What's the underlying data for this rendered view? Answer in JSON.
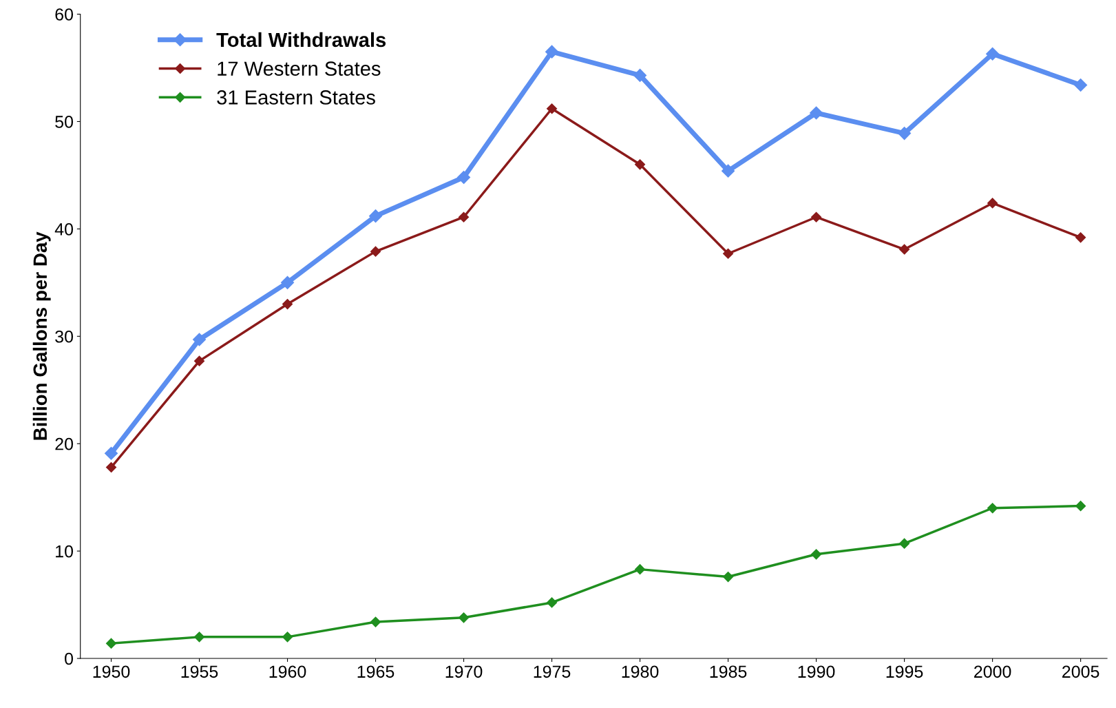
{
  "chart_data": {
    "type": "line",
    "ylabel": "Billion Gallons per Day",
    "categories": [
      "1950",
      "1955",
      "1960",
      "1965",
      "1970",
      "1975",
      "1980",
      "1985",
      "1990",
      "1995",
      "2000",
      "2005"
    ],
    "series": [
      {
        "name": "Total Withdrawals",
        "color": "#5b8ef0",
        "values": [
          19.1,
          29.7,
          35.0,
          41.2,
          44.8,
          56.5,
          54.3,
          45.4,
          50.8,
          48.9,
          56.3,
          53.4
        ]
      },
      {
        "name": "17 Western States",
        "color": "#8b1a1a",
        "values": [
          17.8,
          27.7,
          33.0,
          37.9,
          41.1,
          51.2,
          46.0,
          37.7,
          41.1,
          38.1,
          42.4,
          39.2
        ]
      },
      {
        "name": "31 Eastern States",
        "color": "#1f8f1f",
        "values": [
          1.4,
          2.0,
          2.0,
          3.4,
          3.8,
          5.2,
          8.3,
          7.6,
          9.7,
          10.7,
          14.0,
          14.2
        ]
      }
    ],
    "ylim": [
      0,
      60
    ],
    "yticks": [
      0,
      10,
      20,
      30,
      40,
      50,
      60
    ],
    "grid": false,
    "legend": "top left",
    "marker": "diamond",
    "line_style": "solid"
  }
}
